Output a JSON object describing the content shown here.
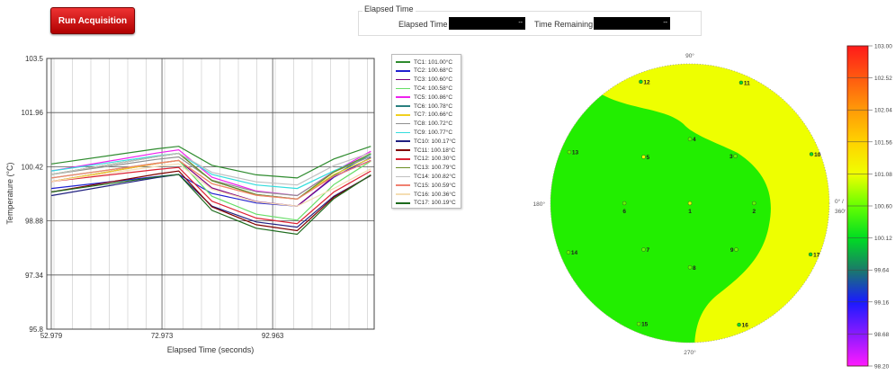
{
  "toolbar": {
    "run_label": "Run Acquisition"
  },
  "elapsed": {
    "group_title": "Elapsed Time",
    "elapsed_label": "Elapsed Time",
    "elapsed_value": "--",
    "remaining_label": "Time Remaining",
    "remaining_value": "--"
  },
  "chart_data": {
    "type": "line",
    "xlabel": "Elapsed Time (seconds)",
    "ylabel": "Temperature (°C)",
    "xlim": [
      52.17,
      111.3
    ],
    "ylim": [
      95.8,
      103.5
    ],
    "xticks": [
      "52.979",
      "72.973",
      "92.963"
    ],
    "yticks": [
      "103.5",
      "101.96",
      "100.42",
      "98.88",
      "97.34",
      "95.8"
    ],
    "grid": true,
    "legend_position": "right",
    "x": [
      53,
      72,
      76,
      82,
      90,
      97.4,
      104,
      110.7
    ],
    "series": [
      {
        "name": "TC1",
        "label": "TC1:  101.00°C",
        "color": "#2e8b2e",
        "values": [
          100.5,
          100.93,
          101.0,
          100.46,
          100.19,
          100.1,
          100.64,
          101.0
        ]
      },
      {
        "name": "TC2",
        "label": "TC2:  100.68°C",
        "color": "#2020d0",
        "values": [
          99.8,
          100.14,
          100.2,
          99.66,
          99.39,
          99.3,
          100.12,
          100.68
        ]
      },
      {
        "name": "TC3",
        "label": "TC3:  100.60°C",
        "color": "#800080",
        "values": [
          100.0,
          100.51,
          100.6,
          99.82,
          99.43,
          99.3,
          100.14,
          100.6
        ]
      },
      {
        "name": "TC4",
        "label": "TC4:  100.58°C",
        "color": "#66dd66",
        "values": [
          100.1,
          100.52,
          100.6,
          99.58,
          99.07,
          98.9,
          99.91,
          100.58
        ]
      },
      {
        "name": "TC5",
        "label": "TC5:  100.86°C",
        "color": "#ee22ee",
        "values": [
          100.3,
          100.81,
          100.9,
          100.12,
          99.73,
          99.6,
          100.28,
          100.86
        ]
      },
      {
        "name": "TC6",
        "label": "TC6:  100.78°C",
        "color": "#2a8080",
        "values": [
          100.2,
          100.71,
          100.8,
          100.02,
          99.63,
          99.5,
          100.17,
          100.78
        ]
      },
      {
        "name": "TC7",
        "label": "TC7:  100.66°C",
        "color": "#f0d020",
        "values": [
          100.0,
          100.51,
          100.6,
          99.94,
          99.61,
          99.5,
          100.2,
          100.66
        ]
      },
      {
        "name": "TC8",
        "label": "TC8:  100.72°C",
        "color": "#909090",
        "values": [
          100.2,
          100.63,
          100.7,
          100.04,
          99.71,
          99.6,
          100.27,
          100.72
        ]
      },
      {
        "name": "TC9",
        "label": "TC9:  100.77°C",
        "color": "#33dddd",
        "values": [
          100.3,
          100.73,
          100.8,
          100.2,
          99.9,
          99.8,
          100.3,
          100.77
        ]
      },
      {
        "name": "TC10",
        "label": "TC10:  100.17°C",
        "color": "#202080",
        "values": [
          99.6,
          100.11,
          100.2,
          99.3,
          98.85,
          98.7,
          99.58,
          100.17
        ]
      },
      {
        "name": "TC11",
        "label": "TC11:  100.18°C",
        "color": "#800000",
        "values": [
          99.7,
          100.21,
          100.3,
          99.28,
          98.77,
          98.6,
          99.55,
          100.18
        ]
      },
      {
        "name": "TC12",
        "label": "TC12:  100.30°C",
        "color": "#dd2233",
        "values": [
          100.0,
          100.34,
          100.4,
          99.44,
          98.96,
          98.8,
          99.7,
          100.3
        ]
      },
      {
        "name": "TC13",
        "label": "TC13:  100.79°C",
        "color": "#6b8e23",
        "values": [
          100.2,
          100.71,
          100.8,
          100.02,
          99.63,
          99.5,
          100.27,
          100.79
        ]
      },
      {
        "name": "TC14",
        "label": "TC14:  100.82°C",
        "color": "#c0c0c0",
        "values": [
          100.2,
          100.71,
          100.8,
          100.26,
          99.99,
          99.9,
          100.45,
          100.82
        ]
      },
      {
        "name": "TC15",
        "label": "TC15:  100.59°C",
        "color": "#f08070",
        "values": [
          100.1,
          100.52,
          100.6,
          99.94,
          99.61,
          99.5,
          100.15,
          100.59
        ]
      },
      {
        "name": "TC16",
        "label": "TC16:  100.36°C",
        "color": "#f5deb3",
        "values": [
          100.0,
          100.43,
          100.5,
          99.78,
          99.42,
          99.3,
          99.8,
          100.36
        ]
      },
      {
        "name": "TC17",
        "label": "TC17:  100.19°C",
        "color": "#1e6b1e",
        "values": [
          99.7,
          100.13,
          100.2,
          99.18,
          98.67,
          98.5,
          99.51,
          100.19
        ]
      }
    ]
  },
  "polar": {
    "angle_labels": {
      "top": "90°",
      "left": "180°",
      "bottom": "270°",
      "right_1": "0° /",
      "right_2": "360°"
    },
    "region_colors": {
      "green": "#22ee00",
      "yellow": "#eeff00"
    },
    "sensors": [
      {
        "id": "1",
        "angle": 0,
        "r": 0,
        "value": 101.0
      },
      {
        "id": "2",
        "angle": 0,
        "r": 0.46,
        "value": 100.68
      },
      {
        "id": "3",
        "angle": 46,
        "r": 0.47,
        "value": 100.6
      },
      {
        "id": "4",
        "angle": 90,
        "r": 0.46,
        "value": 100.58
      },
      {
        "id": "5",
        "angle": 135,
        "r": 0.47,
        "value": 100.86
      },
      {
        "id": "6",
        "angle": 180,
        "r": 0.47,
        "value": 100.78
      },
      {
        "id": "7",
        "angle": 225,
        "r": 0.47,
        "value": 100.66
      },
      {
        "id": "8",
        "angle": 270,
        "r": 0.46,
        "value": 100.72
      },
      {
        "id": "9",
        "angle": 315,
        "r": 0.47,
        "value": 100.77
      },
      {
        "id": "10",
        "angle": 22,
        "r": 0.94,
        "value": 100.17
      },
      {
        "id": "11",
        "angle": 67,
        "r": 0.94,
        "value": 100.18
      },
      {
        "id": "12",
        "angle": 112,
        "r": 0.94,
        "value": 100.3
      },
      {
        "id": "13",
        "angle": 157,
        "r": 0.94,
        "value": 100.79
      },
      {
        "id": "14",
        "angle": 202,
        "r": 0.94,
        "value": 100.82
      },
      {
        "id": "15",
        "angle": 247,
        "r": 0.94,
        "value": 100.59
      },
      {
        "id": "16",
        "angle": 292,
        "r": 0.94,
        "value": 100.36
      },
      {
        "id": "17",
        "angle": 337,
        "r": 0.94,
        "value": 100.19
      }
    ]
  },
  "colorbar": {
    "ticks": [
      "103.00",
      "102.52",
      "102.04",
      "101.56",
      "101.08",
      "100.60",
      "100.12",
      "99.64",
      "99.16",
      "98.68",
      "98.20"
    ],
    "colors": [
      "#ff1a1a",
      "#ff5a10",
      "#ff9a08",
      "#ffd200",
      "#f0ff00",
      "#66ff00",
      "#00dd22",
      "#1a7a6a",
      "#1a1aff",
      "#8a1aff",
      "#ff1aff"
    ]
  }
}
